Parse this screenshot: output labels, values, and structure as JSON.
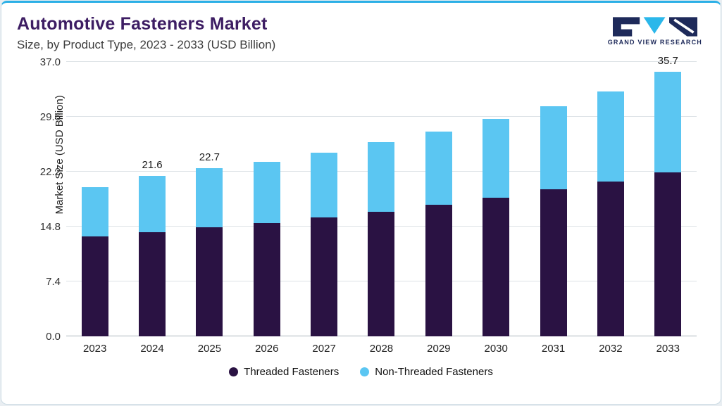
{
  "header": {
    "title": "Automotive Fasteners Market",
    "subtitle": "Size, by Product Type, 2023 - 2033 (USD Billion)",
    "logo_text": "GRAND VIEW RESEARCH"
  },
  "colors": {
    "accent_line": "#2aafe6",
    "title": "#3d1d63",
    "threaded": "#2a1243",
    "non_threaded": "#5bc6f2",
    "logo_navy": "#1e2a5a",
    "logo_cyan": "#2bb7ea"
  },
  "chart_data": {
    "type": "bar",
    "stacked": true,
    "title": "Automotive Fasteners Market Size, by Product Type, 2023 - 2033 (USD Billion)",
    "xlabel": "",
    "ylabel": "Market Size (USD Billion)",
    "ylim": [
      0,
      37.0
    ],
    "ytick_labels": [
      "0.0",
      "7.4",
      "14.8",
      "22.2",
      "29.6",
      "37.0"
    ],
    "grid": true,
    "legend_position": "bottom",
    "categories": [
      "2023",
      "2024",
      "2025",
      "2026",
      "2027",
      "2028",
      "2029",
      "2030",
      "2031",
      "2032",
      "2033"
    ],
    "series": [
      {
        "name": "Threaded Fasteners",
        "color": "#2a1243",
        "values": [
          13.5,
          14.0,
          14.7,
          15.3,
          16.0,
          16.8,
          17.7,
          18.7,
          19.8,
          20.9,
          22.1
        ]
      },
      {
        "name": "Non-Threaded Fasteners",
        "color": "#5bc6f2",
        "values": [
          6.6,
          7.6,
          8.0,
          8.2,
          8.8,
          9.4,
          9.9,
          10.6,
          11.2,
          12.1,
          13.6
        ]
      }
    ],
    "totals": [
      20.1,
      21.6,
      22.7,
      23.5,
      24.8,
      26.2,
      27.6,
      29.3,
      31.0,
      33.0,
      35.7
    ],
    "bar_labels": [
      "",
      "21.6",
      "22.7",
      "",
      "",
      "",
      "",
      "",
      "",
      "",
      "35.7"
    ]
  }
}
